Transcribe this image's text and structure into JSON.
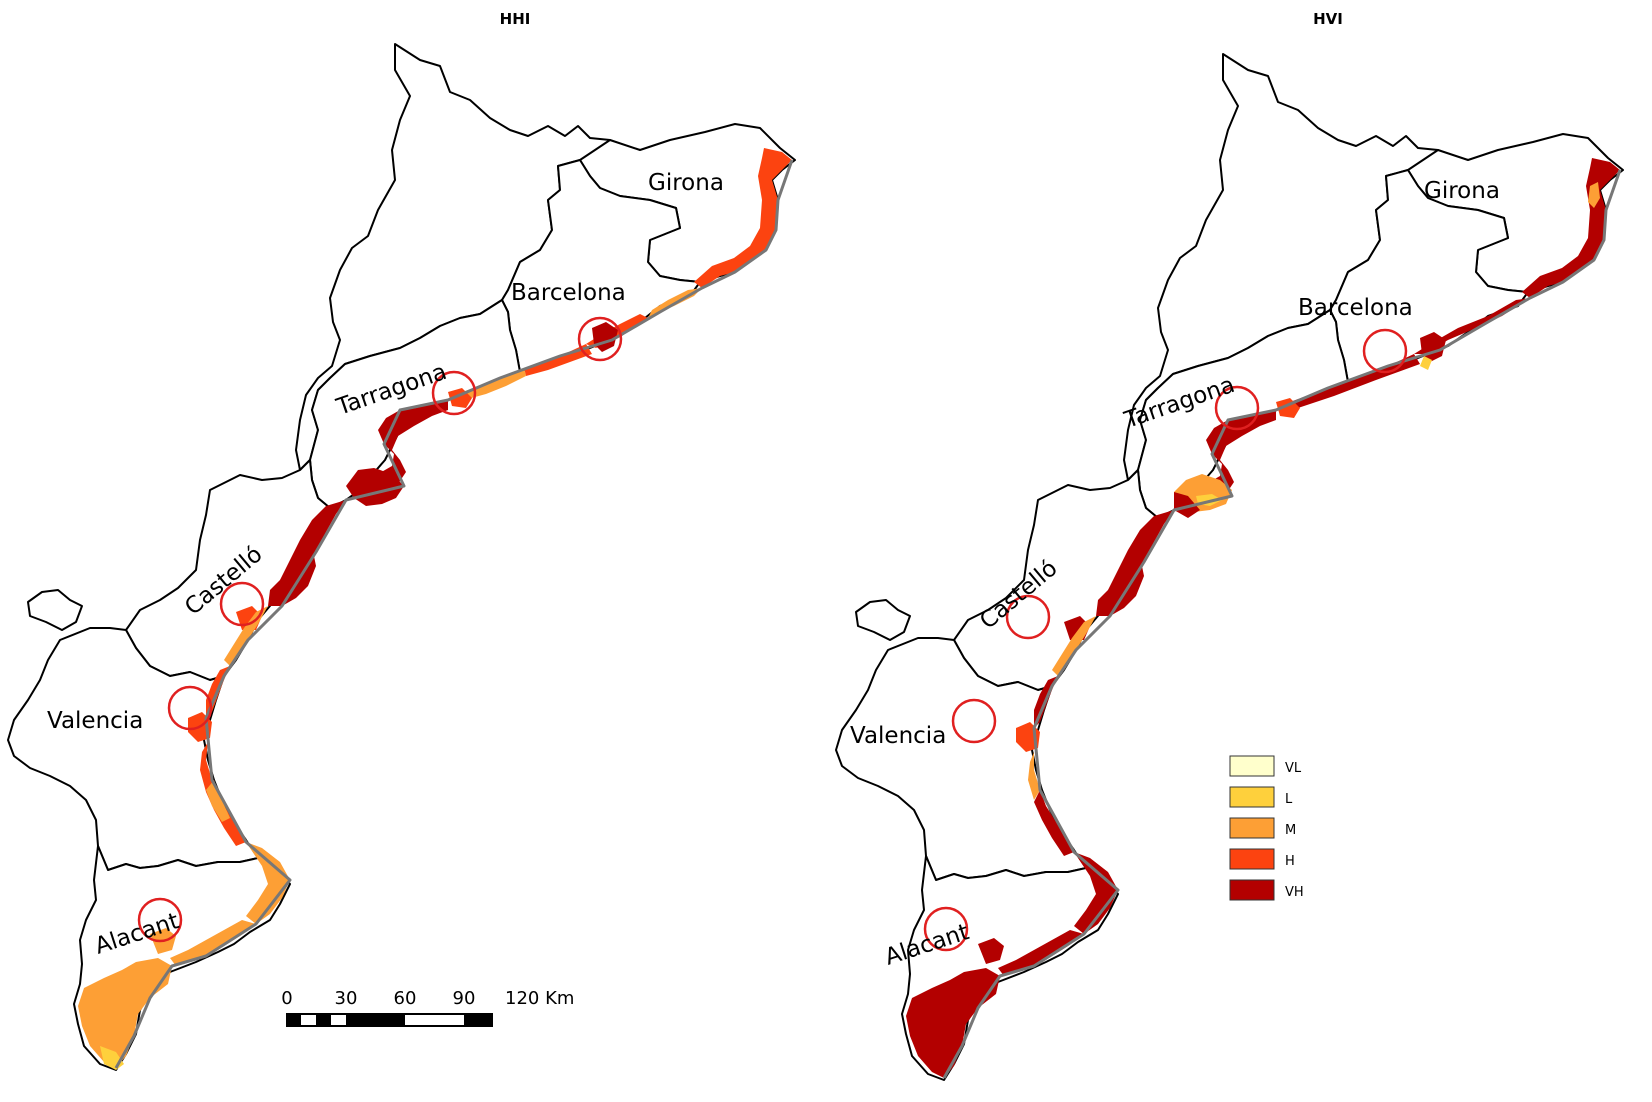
{
  "maps": [
    {
      "title": "HHI",
      "provinces": [
        "Girona",
        "Barcelona",
        "Tarragona",
        "Castelló",
        "Valencia",
        "Alacant"
      ]
    },
    {
      "title": "HVI",
      "provinces": [
        "Girona",
        "Barcelona",
        "Tarragona",
        "Castelló",
        "Valencia",
        "Alacant"
      ]
    }
  ],
  "scale_bar": {
    "ticks": [
      "0",
      "30",
      "60",
      "90",
      "120 Km"
    ]
  },
  "legend": {
    "items": [
      {
        "label": "VL",
        "color": "#ffffcc"
      },
      {
        "label": "L",
        "color": "#fed03c"
      },
      {
        "label": "M",
        "color": "#fd9f35"
      },
      {
        "label": "H",
        "color": "#fc4310"
      },
      {
        "label": "VH",
        "color": "#b30000"
      }
    ]
  }
}
